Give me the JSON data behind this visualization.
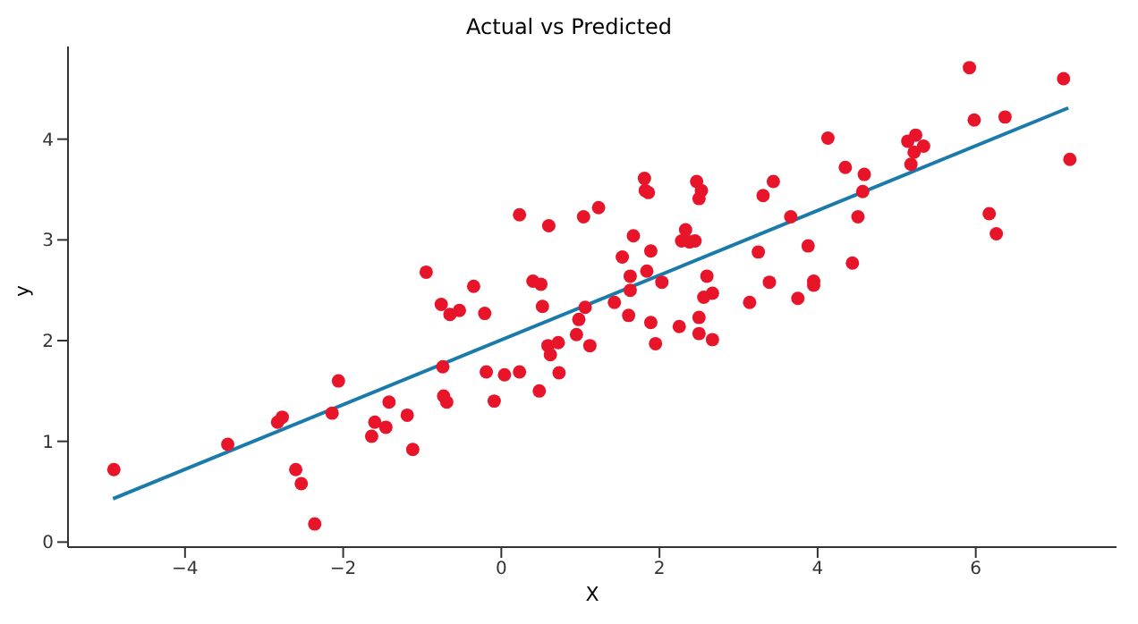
{
  "chart_data": {
    "type": "scatter",
    "title": "Actual vs Predicted",
    "xlabel": "X",
    "ylabel": "y",
    "xlim": [
      -5.48,
      7.78
    ],
    "xticks": [
      -4,
      -2,
      0,
      2,
      4,
      6
    ],
    "ylim": [
      -0.05,
      4.92
    ],
    "yticks": [
      0,
      1,
      2,
      3,
      4
    ],
    "grid": false,
    "series": [
      {
        "color": "#e8152a",
        "marker": "circle",
        "x": [
          -4.9,
          -3.46,
          -2.83,
          -2.77,
          -2.6,
          -2.53,
          -2.36,
          -2.14,
          -2.06,
          -1.64,
          -1.6,
          -1.46,
          -1.42,
          -1.19,
          -1.12,
          -0.95,
          -0.76,
          -0.74,
          -0.73,
          -0.69,
          -0.65,
          -0.53,
          -0.35,
          -0.21,
          -0.19,
          -0.09,
          0.04,
          0.23,
          0.23,
          0.4,
          0.5,
          0.48,
          0.52,
          0.59,
          0.6,
          0.62,
          0.72,
          0.73,
          0.95,
          0.98,
          1.04,
          1.06,
          1.12,
          1.23,
          1.43,
          1.53,
          1.61,
          1.63,
          1.63,
          1.67,
          1.81,
          1.82,
          1.86,
          1.84,
          1.89,
          1.89,
          1.95,
          2.03,
          2.25,
          2.28,
          2.33,
          2.38,
          2.45,
          2.47,
          2.53,
          2.5,
          2.5,
          2.5,
          2.56,
          2.6,
          2.67,
          2.67,
          3.14,
          3.25,
          3.31,
          3.39,
          3.44,
          3.66,
          3.75,
          3.88,
          3.95,
          3.95,
          4.13,
          4.35,
          4.44,
          4.51,
          4.57,
          4.59,
          5.14,
          5.24,
          5.22,
          5.34,
          5.18,
          5.92,
          5.98,
          6.17,
          6.26,
          6.37,
          7.11,
          7.19
        ],
        "values": [
          0.72,
          0.97,
          1.19,
          1.24,
          0.72,
          0.58,
          0.18,
          1.28,
          1.6,
          1.05,
          1.19,
          1.14,
          1.39,
          1.26,
          0.92,
          2.68,
          2.36,
          1.74,
          1.45,
          1.39,
          2.26,
          2.3,
          2.54,
          2.27,
          1.69,
          1.4,
          1.66,
          3.25,
          1.69,
          2.59,
          2.56,
          1.5,
          2.34,
          1.95,
          3.14,
          1.86,
          1.98,
          1.68,
          2.06,
          2.21,
          3.23,
          2.33,
          1.95,
          3.32,
          2.38,
          2.83,
          2.25,
          2.5,
          2.64,
          3.04,
          3.61,
          3.49,
          3.47,
          2.69,
          2.18,
          2.89,
          1.97,
          2.58,
          2.14,
          2.99,
          3.1,
          2.98,
          2.99,
          3.58,
          3.49,
          3.41,
          2.23,
          2.07,
          2.43,
          2.64,
          2.47,
          2.01,
          2.38,
          2.88,
          3.44,
          2.58,
          3.58,
          3.23,
          2.42,
          2.94,
          2.59,
          2.55,
          4.01,
          3.72,
          2.77,
          3.23,
          3.48,
          3.65,
          3.98,
          4.04,
          3.87,
          3.93,
          3.75,
          4.71,
          4.19,
          3.26,
          3.06,
          4.22,
          4.6,
          3.8
        ]
      },
      {
        "type": "line",
        "marker": "none",
        "color": "#1a7aaa",
        "x": [
          -4.91,
          7.17
        ],
        "values": [
          0.43,
          4.31
        ]
      }
    ]
  }
}
